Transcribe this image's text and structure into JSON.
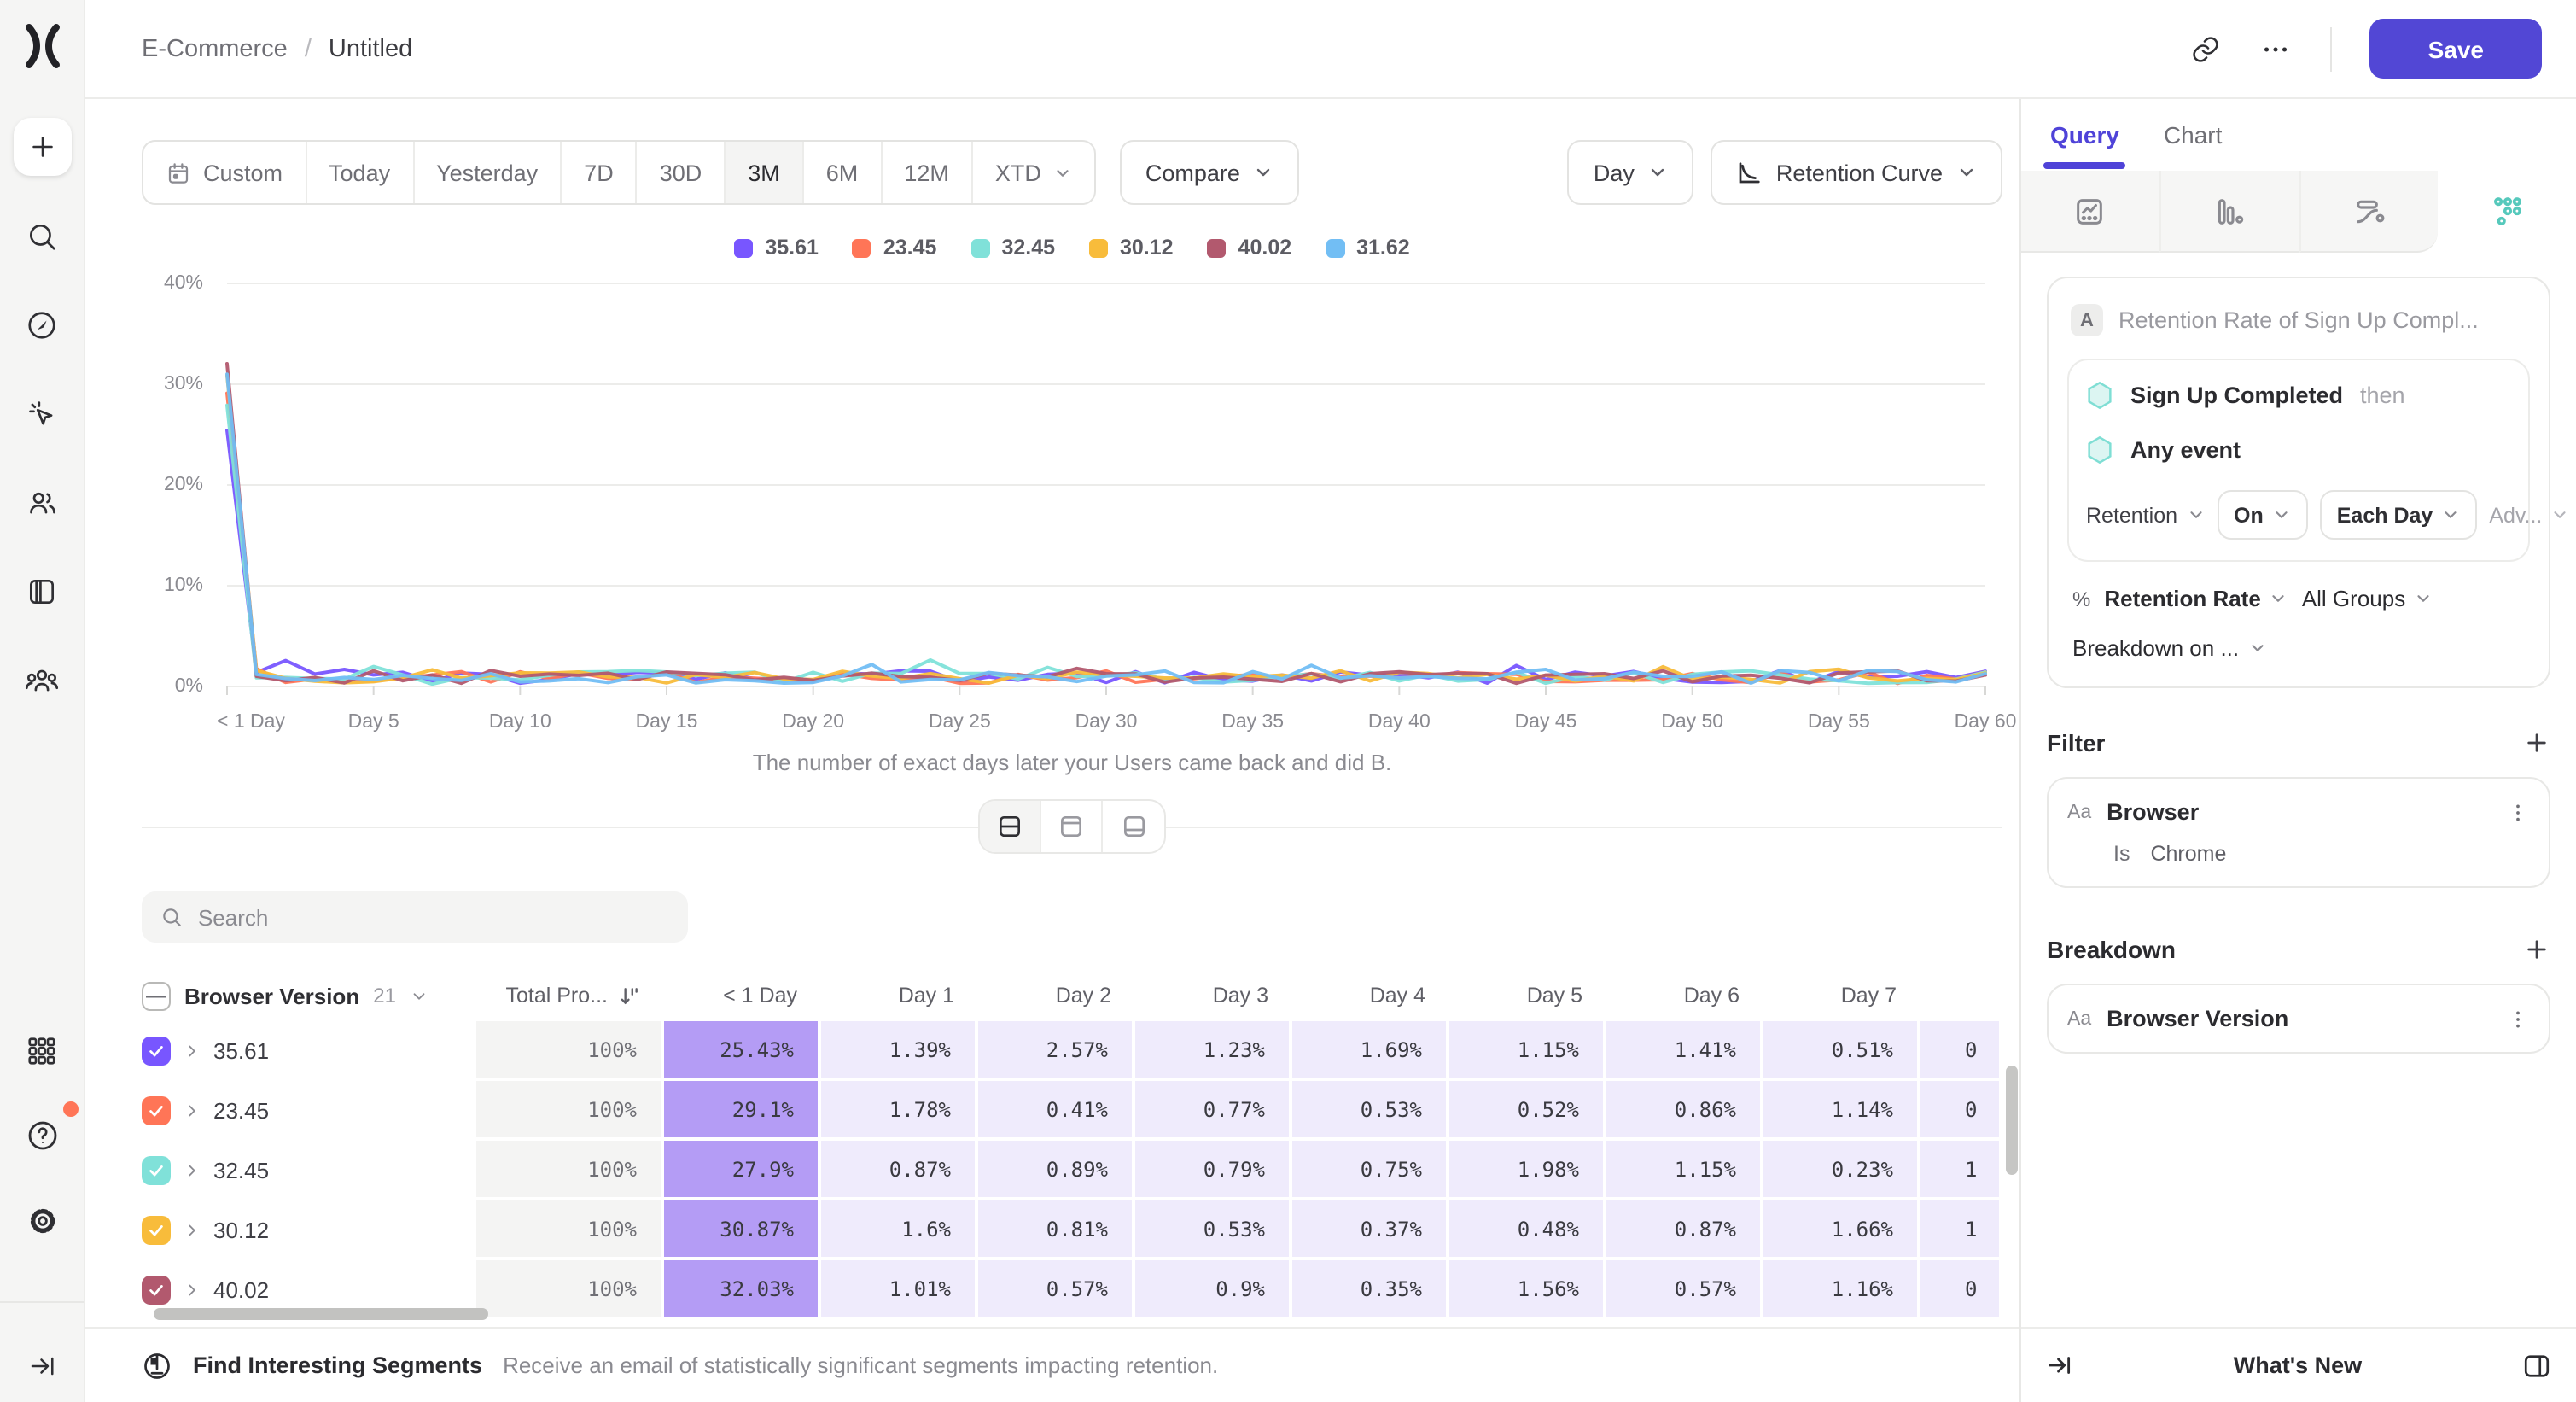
{
  "header": {
    "breadcrumb": {
      "project": "E-Commerce",
      "report": "Untitled"
    },
    "save_label": "Save"
  },
  "toolbar": {
    "date_ranges": [
      "Custom",
      "Today",
      "Yesterday",
      "7D",
      "30D",
      "3M",
      "6M",
      "12M",
      "XTD"
    ],
    "active_range": "3M",
    "compare_label": "Compare",
    "granularity_label": "Day",
    "chart_type_label": "Retention Curve"
  },
  "legend": [
    {
      "label": "35.61",
      "color": "#7856FF"
    },
    {
      "label": "23.45",
      "color": "#FF7557"
    },
    {
      "label": "32.45",
      "color": "#80E1D9"
    },
    {
      "label": "30.12",
      "color": "#F8BC3B"
    },
    {
      "label": "40.02",
      "color": "#B2596E"
    },
    {
      "label": "31.62",
      "color": "#72BEF4"
    }
  ],
  "chart_data": {
    "type": "line",
    "title": "",
    "xlabel_caption": "The number of exact days later your Users came back and did B.",
    "x_unit": "days since first event",
    "x_range": [
      0,
      60
    ],
    "x_tick_labels": [
      "< 1 Day",
      "Day 5",
      "Day 10",
      "Day 15",
      "Day 20",
      "Day 25",
      "Day 30",
      "Day 35",
      "Day 40",
      "Day 45",
      "Day 50",
      "Day 55",
      "Day 60"
    ],
    "ylim": [
      0,
      40
    ],
    "y_tick_labels": [
      "0%",
      "10%",
      "20%",
      "30%",
      "40%"
    ],
    "grid": "horizontal",
    "legend_position": "top-center",
    "series": [
      {
        "name": "35.61",
        "color": "#7856FF",
        "values_pct_day0_to_7": [
          25.43,
          1.39,
          2.57,
          1.23,
          1.69,
          1.15,
          1.41,
          0.51
        ]
      },
      {
        "name": "23.45",
        "color": "#FF7557",
        "values_pct_day0_to_7": [
          29.1,
          1.78,
          0.41,
          0.77,
          0.53,
          0.52,
          0.86,
          1.14
        ]
      },
      {
        "name": "32.45",
        "color": "#80E1D9",
        "values_pct_day0_to_7": [
          27.9,
          0.87,
          0.89,
          0.79,
          0.75,
          1.98,
          1.15,
          0.23
        ]
      },
      {
        "name": "30.12",
        "color": "#F8BC3B",
        "values_pct_day0_to_7": [
          30.87,
          1.6,
          0.81,
          0.53,
          0.37,
          0.48,
          0.87,
          1.66
        ]
      },
      {
        "name": "40.02",
        "color": "#B2596E",
        "values_pct_day0_to_7": [
          32.03,
          1.01,
          0.57,
          0.9,
          0.35,
          1.56,
          0.57,
          1.16
        ]
      },
      {
        "name": "31.62",
        "color": "#72BEF4",
        "values_pct_day0_to_7": [
          31.0,
          1.2,
          0.8,
          0.6,
          0.9,
          0.7,
          1.1,
          0.8
        ]
      }
    ],
    "days_8_to_60_note": "all series fluctuate between roughly 0.2% and 2.5%; individual values not legible in screenshot"
  },
  "view_toggle": {
    "modes": [
      "split",
      "chart-only",
      "table-only"
    ],
    "active": "split"
  },
  "search": {
    "placeholder": "Search"
  },
  "table": {
    "group_column": "Browser Version",
    "group_count": "21",
    "total_column": "Total Pro...",
    "day_columns": [
      "< 1 Day",
      "Day 1",
      "Day 2",
      "Day 3",
      "Day 4",
      "Day 5",
      "Day 6",
      "Day 7"
    ],
    "rows": [
      {
        "label": "35.61",
        "color": "#7856FF",
        "total": "100%",
        "values": [
          "25.43%",
          "1.39%",
          "2.57%",
          "1.23%",
          "1.69%",
          "1.15%",
          "1.41%",
          "0.51%"
        ],
        "day8_partial": "0"
      },
      {
        "label": "23.45",
        "color": "#FF7557",
        "total": "100%",
        "values": [
          "29.1%",
          "1.78%",
          "0.41%",
          "0.77%",
          "0.53%",
          "0.52%",
          "0.86%",
          "1.14%"
        ],
        "day8_partial": "0"
      },
      {
        "label": "32.45",
        "color": "#80E1D9",
        "total": "100%",
        "values": [
          "27.9%",
          "0.87%",
          "0.89%",
          "0.79%",
          "0.75%",
          "1.98%",
          "1.15%",
          "0.23%"
        ],
        "day8_partial": "1"
      },
      {
        "label": "30.12",
        "color": "#F8BC3B",
        "total": "100%",
        "values": [
          "30.87%",
          "1.6%",
          "0.81%",
          "0.53%",
          "0.37%",
          "0.48%",
          "0.87%",
          "1.66%"
        ],
        "day8_partial": "1"
      },
      {
        "label": "40.02",
        "color": "#B2596E",
        "total": "100%",
        "values": [
          "32.03%",
          "1.01%",
          "0.57%",
          "0.9%",
          "0.35%",
          "1.56%",
          "0.57%",
          "1.16%"
        ],
        "day8_partial": "0"
      }
    ]
  },
  "main_footer": {
    "title": "Find Interesting Segments",
    "subtitle": "Receive an email of statistically significant segments impacting retention."
  },
  "panel": {
    "tabs": {
      "query": "Query",
      "chart": "Chart",
      "active": "Query"
    },
    "query": {
      "badge": "A",
      "title": "Retention Rate of Sign Up Compl...",
      "first_event": "Sign Up Completed",
      "then_label": "then",
      "returning_event": "Any event",
      "retention_label": "Retention",
      "on_label": "On",
      "bucket_label": "Each Day",
      "advanced_label": "Adv...",
      "percent_sign": "%",
      "metric_label": "Retention Rate",
      "groups_label": "All Groups",
      "breakdown_on_label": "Breakdown on ..."
    },
    "filter": {
      "heading": "Filter",
      "type_label": "Aa",
      "property": "Browser",
      "operator": "Is",
      "value": "Chrome"
    },
    "breakdown": {
      "heading": "Breakdown",
      "type_label": "Aa",
      "property": "Browser Version"
    },
    "footer": {
      "whats_new": "What's New"
    }
  }
}
